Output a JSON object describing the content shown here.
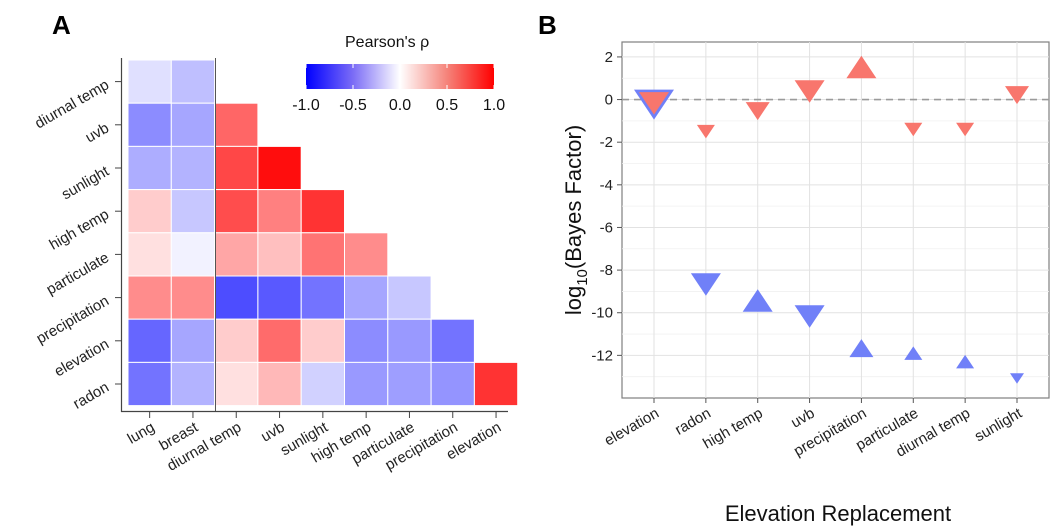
{
  "panels": {
    "a_label": "A",
    "b_label": "B"
  },
  "chart_data": [
    {
      "type": "heatmap",
      "panel": "A",
      "rows_top_to_bottom": [
        "diurnal temp",
        "uvb",
        "sunlight",
        "high temp",
        "particulate",
        "precipitation",
        "elevation",
        "radon"
      ],
      "columns": [
        "lung",
        "breast",
        "diurnal temp",
        "uvb",
        "sunlight",
        "high temp",
        "particulate",
        "precipitation",
        "elevation"
      ],
      "values": [
        [
          -0.12,
          -0.25,
          null,
          null,
          null,
          null,
          null,
          null,
          null
        ],
        [
          -0.45,
          -0.35,
          0.6,
          null,
          null,
          null,
          null,
          null,
          null
        ],
        [
          -0.32,
          -0.3,
          0.72,
          0.95,
          null,
          null,
          null,
          null,
          null
        ],
        [
          0.2,
          -0.22,
          0.7,
          0.5,
          0.8,
          null,
          null,
          null,
          null
        ],
        [
          0.12,
          -0.05,
          0.35,
          0.25,
          0.55,
          0.45,
          null,
          null,
          null
        ],
        [
          0.45,
          0.45,
          -0.7,
          -0.65,
          -0.55,
          -0.35,
          -0.22,
          null,
          null
        ],
        [
          -0.6,
          -0.35,
          0.2,
          0.58,
          0.2,
          -0.45,
          -0.4,
          -0.55,
          null
        ],
        [
          -0.55,
          -0.3,
          0.12,
          0.28,
          -0.18,
          -0.4,
          -0.38,
          -0.42,
          0.8
        ]
      ],
      "legend": {
        "title": "Pearson's ρ",
        "ticks": [
          "-1.0",
          "-0.5",
          "0.0",
          "0.5",
          "1.0"
        ],
        "range": [
          -1,
          1
        ],
        "colors": {
          "low": "#0000ff",
          "mid": "#ffffff",
          "high": "#ff0000"
        }
      }
    },
    {
      "type": "scatter",
      "panel": "B",
      "categories": [
        "elevation",
        "radon",
        "high temp",
        "uvb",
        "precipitation",
        "particulate",
        "diurnal temp",
        "sunlight"
      ],
      "ylabel": "log10(Bayes Factor)",
      "xlabel": "Elevation Replacement",
      "ylim": [
        -14.0,
        2.7
      ],
      "yticks": [
        2,
        0,
        -2,
        -4,
        -6,
        -8,
        -10,
        -12
      ],
      "reference_line": 0,
      "grid": true,
      "series": [
        {
          "color": "#f8766d",
          "points": [
            {
              "x": "elevation",
              "y": 0.0,
              "shape": "triangle-down",
              "size": "large"
            },
            {
              "x": "radon",
              "y": -1.4,
              "shape": "triangle-down",
              "size": "small"
            },
            {
              "x": "high temp",
              "y": -0.4,
              "shape": "triangle-down",
              "size": "medium"
            },
            {
              "x": "uvb",
              "y": 0.55,
              "shape": "triangle-down",
              "size": "large"
            },
            {
              "x": "precipitation",
              "y": 1.35,
              "shape": "triangle-up",
              "size": "large"
            },
            {
              "x": "particulate",
              "y": -1.3,
              "shape": "triangle-down",
              "size": "small"
            },
            {
              "x": "diurnal temp",
              "y": -1.3,
              "shape": "triangle-down",
              "size": "small"
            },
            {
              "x": "sunlight",
              "y": 0.35,
              "shape": "triangle-down",
              "size": "medium"
            }
          ]
        },
        {
          "color": "#7080f8",
          "points": [
            {
              "x": "elevation",
              "y": 0.0,
              "shape": "triangle-down",
              "size": "xlarge"
            },
            {
              "x": "radon",
              "y": -8.5,
              "shape": "triangle-down",
              "size": "large"
            },
            {
              "x": "high temp",
              "y": -9.6,
              "shape": "triangle-up",
              "size": "large"
            },
            {
              "x": "uvb",
              "y": -10.0,
              "shape": "triangle-down",
              "size": "large"
            },
            {
              "x": "precipitation",
              "y": -11.8,
              "shape": "triangle-up",
              "size": "medium"
            },
            {
              "x": "particulate",
              "y": -12.0,
              "shape": "triangle-up",
              "size": "small"
            },
            {
              "x": "diurnal temp",
              "y": -12.4,
              "shape": "triangle-up",
              "size": "small"
            },
            {
              "x": "sunlight",
              "y": -13.0,
              "shape": "triangle-down",
              "size": "xsmall"
            }
          ]
        }
      ]
    }
  ]
}
